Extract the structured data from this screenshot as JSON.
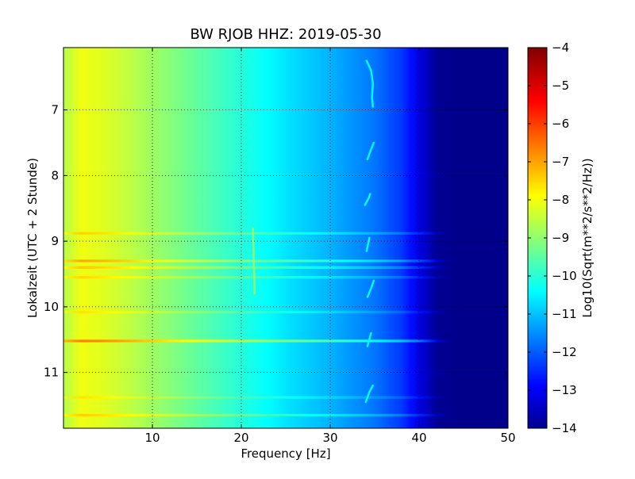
{
  "chart_data": {
    "type": "heatmap",
    "title": "BW RJOB HHZ: 2019-05-30",
    "xlabel": "Frequency [Hz]",
    "ylabel": "Lokalzeit (UTC + 2 Stunde)",
    "xlim": [
      0,
      50
    ],
    "ylim": [
      11.85,
      6.05
    ],
    "x_ticks": [
      10,
      20,
      30,
      40,
      50
    ],
    "x_tick_labels": [
      "10",
      "20",
      "30",
      "40",
      "50"
    ],
    "y_ticks": [
      7,
      8,
      9,
      10,
      11
    ],
    "y_tick_labels": [
      "7",
      "8",
      "9",
      "10",
      "11"
    ],
    "grid": true,
    "colormap": "jet",
    "colorbar": {
      "label": "Log10(Sqrt(m**2/s**2/Hz))",
      "range": [
        -14,
        -4
      ],
      "ticks": [
        -4,
        -5,
        -6,
        -7,
        -8,
        -9,
        -10,
        -11,
        -12,
        -13,
        -14
      ],
      "tick_labels": [
        "−4",
        "−5",
        "−6",
        "−7",
        "−8",
        "−9",
        "−10",
        "−11",
        "−12",
        "−13",
        "−14"
      ]
    },
    "background_level_by_frequency": {
      "frequency_hz": [
        0,
        2,
        5,
        10,
        15,
        20,
        25,
        30,
        35,
        38,
        40,
        42,
        45,
        50
      ],
      "log_psd": [
        -8.5,
        -7.9,
        -8.1,
        -8.7,
        -9.3,
        -9.9,
        -10.5,
        -11.0,
        -11.6,
        -12.2,
        -13.0,
        -13.8,
        -13.9,
        -13.9
      ]
    },
    "bright_time_bands": [
      {
        "time_h": 8.88,
        "log_psd_offset": 0.6
      },
      {
        "time_h": 9.3,
        "log_psd_offset": 1.0
      },
      {
        "time_h": 9.4,
        "log_psd_offset": 0.7
      },
      {
        "time_h": 9.55,
        "log_psd_offset": 0.5
      },
      {
        "time_h": 10.08,
        "log_psd_offset": 0.4
      },
      {
        "time_h": 10.52,
        "log_psd_offset": 1.4
      },
      {
        "time_h": 11.38,
        "log_psd_offset": 0.4
      },
      {
        "time_h": 11.65,
        "log_psd_offset": 0.6
      }
    ],
    "tonal_tracks": [
      {
        "freq_hz": [
          34.1,
          34.6,
          34.8,
          34.7,
          34.8
        ],
        "time_h": [
          6.25,
          6.4,
          6.6,
          6.8,
          6.95
        ]
      },
      {
        "freq_hz": [
          34.2,
          34.6,
          34.9
        ],
        "time_h": [
          7.75,
          7.6,
          7.5
        ]
      },
      {
        "freq_hz": [
          33.9,
          34.3,
          34.5
        ],
        "time_h": [
          8.45,
          8.35,
          8.28
        ]
      },
      {
        "freq_hz": [
          34.1,
          34.4
        ],
        "time_h": [
          9.15,
          8.95
        ]
      },
      {
        "freq_hz": [
          34.2,
          34.6,
          34.9
        ],
        "time_h": [
          9.85,
          9.72,
          9.6
        ]
      },
      {
        "freq_hz": [
          34.2,
          34.6
        ],
        "time_h": [
          10.6,
          10.4
        ]
      },
      {
        "freq_hz": [
          34.0,
          34.4,
          34.8
        ],
        "time_h": [
          11.45,
          11.3,
          11.2
        ]
      },
      {
        "freq_hz": [
          21.3,
          21.5
        ],
        "time_h": [
          8.8,
          9.8
        ]
      }
    ]
  }
}
